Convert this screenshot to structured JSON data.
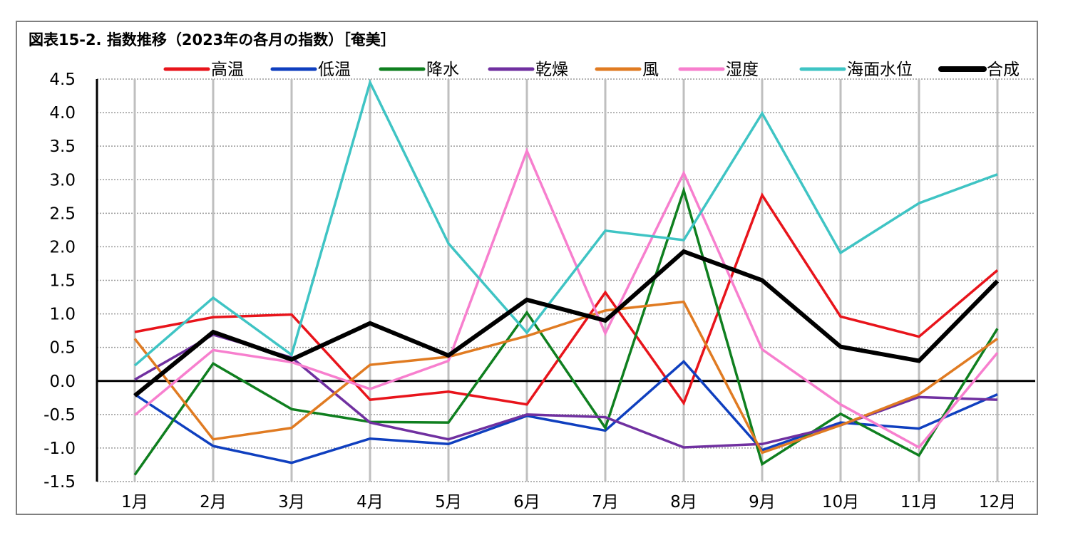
{
  "chart_data": {
    "type": "line",
    "title": "図表15-2. 指数推移（2023年の各月の指数）［奄美］",
    "xlabel": "",
    "ylabel": "",
    "categories": [
      "1月",
      "2月",
      "3月",
      "4月",
      "5月",
      "6月",
      "7月",
      "8月",
      "9月",
      "10月",
      "11月",
      "12月"
    ],
    "ylim": [
      -1.5,
      4.5
    ],
    "yticks": [
      4.5,
      4.0,
      3.5,
      3.0,
      2.5,
      2.0,
      1.5,
      1.0,
      0.5,
      0.0,
      -0.5,
      -1.0,
      -1.5
    ],
    "ytick_labels": [
      "4.5",
      "4.0",
      "3.5",
      "3.0",
      "2.5",
      "2.0",
      "1.5",
      "1.0",
      "0.5",
      "0.0",
      "-0.5",
      "-1.0",
      "-1.5"
    ],
    "grid": true,
    "legend_position": "top",
    "series": [
      {
        "name": "高温",
        "color": "#e8141b",
        "values": [
          0.73,
          0.95,
          0.99,
          -0.28,
          -0.16,
          -0.35,
          1.32,
          -0.33,
          2.77,
          0.96,
          0.66,
          1.65
        ]
      },
      {
        "name": "低温",
        "color": "#0f3fbf",
        "values": [
          -0.2,
          -0.97,
          -1.22,
          -0.86,
          -0.94,
          -0.52,
          -0.74,
          0.29,
          -1.03,
          -0.62,
          -0.71,
          -0.2
        ]
      },
      {
        "name": "降水",
        "color": "#0f7f1f",
        "values": [
          -1.4,
          0.26,
          -0.42,
          -0.61,
          -0.62,
          1.02,
          -0.7,
          2.84,
          -1.24,
          -0.49,
          -1.11,
          0.78
        ]
      },
      {
        "name": "乾燥",
        "color": "#7030a0",
        "values": [
          0.02,
          0.69,
          0.35,
          -0.62,
          -0.87,
          -0.5,
          -0.54,
          -0.99,
          -0.94,
          -0.66,
          -0.24,
          -0.28
        ]
      },
      {
        "name": "風",
        "color": "#e07b22",
        "values": [
          0.63,
          -0.87,
          -0.7,
          0.24,
          0.36,
          0.67,
          1.05,
          1.18,
          -1.07,
          -0.66,
          -0.2,
          0.63
        ]
      },
      {
        "name": "湿度",
        "color": "#f77fce",
        "values": [
          -0.51,
          0.46,
          0.28,
          -0.12,
          0.3,
          3.43,
          0.71,
          3.1,
          0.47,
          -0.35,
          -0.99,
          0.42
        ]
      },
      {
        "name": "海面水位",
        "color": "#3fc4c4",
        "values": [
          0.23,
          1.24,
          0.39,
          4.45,
          2.05,
          0.72,
          2.24,
          2.1,
          3.99,
          1.91,
          2.65,
          3.08
        ]
      },
      {
        "name": "合成",
        "color": "#000000",
        "values": [
          -0.22,
          0.73,
          0.32,
          0.86,
          0.38,
          1.21,
          0.9,
          1.93,
          1.5,
          0.51,
          0.3,
          1.49
        ]
      }
    ]
  }
}
